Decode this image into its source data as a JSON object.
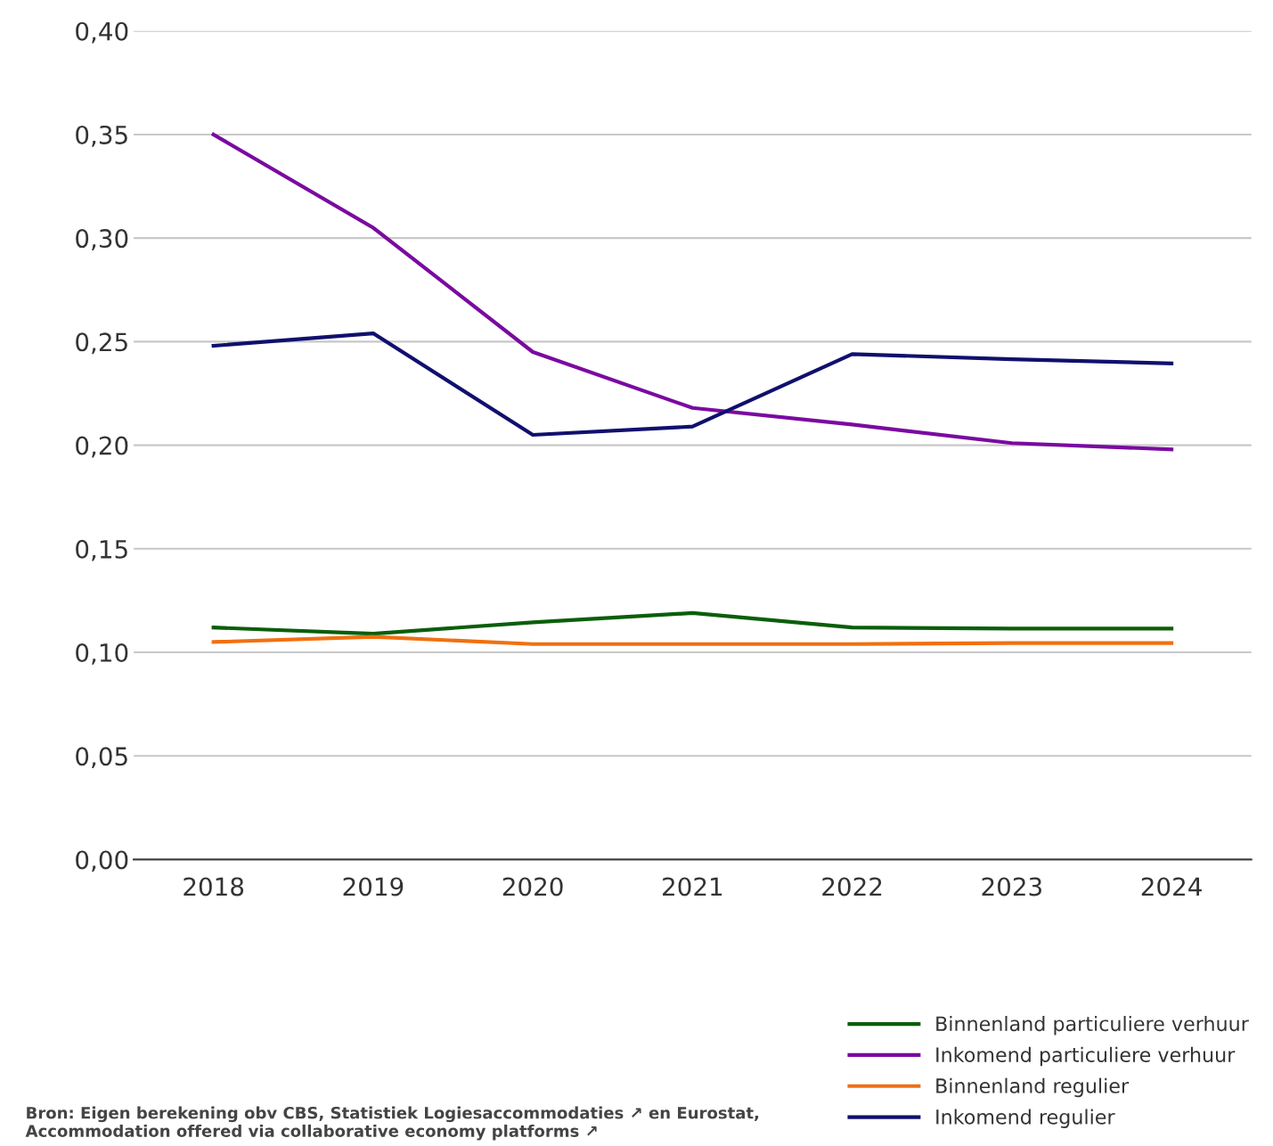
{
  "chart_data": {
    "type": "line",
    "categories": [
      "2018",
      "2019",
      "2020",
      "2021",
      "2022",
      "2023",
      "2024"
    ],
    "series": [
      {
        "name": "Binnenland particuliere verhuur",
        "color": "#0b5e0b",
        "values": [
          0.112,
          0.109,
          0.1145,
          0.119,
          0.112,
          0.1115,
          0.1115
        ]
      },
      {
        "name": "Inkomend particuliere verhuur",
        "color": "#7a0aa0",
        "values": [
          0.35,
          0.305,
          0.245,
          0.218,
          0.21,
          0.201,
          0.198
        ]
      },
      {
        "name": "Binnenland regulier",
        "color": "#f07010",
        "values": [
          0.105,
          0.1075,
          0.104,
          0.104,
          0.104,
          0.1045,
          0.1045
        ]
      },
      {
        "name": "Inkomend regulier",
        "color": "#10106e",
        "values": [
          0.248,
          0.254,
          0.205,
          0.209,
          0.244,
          0.2415,
          0.2395
        ]
      }
    ],
    "ylim": [
      0,
      0.4
    ],
    "yticks": [
      {
        "value": 0,
        "label": "0,00"
      },
      {
        "value": 0.05,
        "label": "0,05"
      },
      {
        "value": 0.1,
        "label": "0,10"
      },
      {
        "value": 0.15,
        "label": "0,15"
      },
      {
        "value": 0.2,
        "label": "0,20"
      },
      {
        "value": 0.25,
        "label": "0,25"
      },
      {
        "value": 0.3,
        "label": "0,30"
      },
      {
        "value": 0.35,
        "label": "0,35"
      },
      {
        "value": 0.4,
        "label": "0,40"
      }
    ],
    "grid": "y",
    "legend": "bottom right",
    "marker": "none",
    "line_style": "solid",
    "annotations": [
      "Bron: Eigen berekening obv CBS, Statistiek Logiesaccommodaties ↗ en Eurostat, Accommodation offered via collaborative economy platforms ↗"
    ]
  }
}
